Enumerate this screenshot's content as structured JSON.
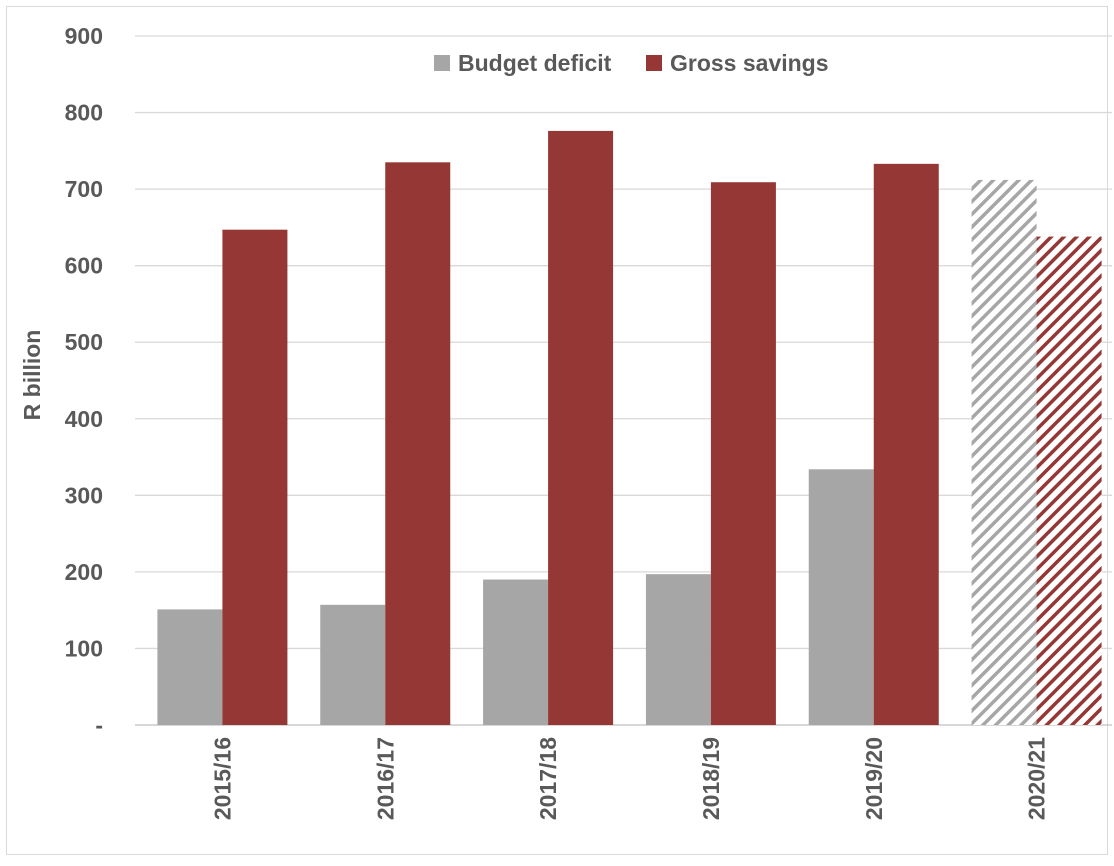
{
  "chart_data": {
    "type": "bar",
    "title": "",
    "xlabel": "",
    "ylabel": "R billion",
    "ylim": [
      0,
      900
    ],
    "yticks": [
      {
        "value": 0,
        "label": "-"
      },
      {
        "value": 100,
        "label": "100"
      },
      {
        "value": 200,
        "label": "200"
      },
      {
        "value": 300,
        "label": "300"
      },
      {
        "value": 400,
        "label": "400"
      },
      {
        "value": 500,
        "label": "500"
      },
      {
        "value": 600,
        "label": "600"
      },
      {
        "value": 700,
        "label": "700"
      },
      {
        "value": 800,
        "label": "800"
      },
      {
        "value": 900,
        "label": "900"
      }
    ],
    "categories": [
      "2015/16",
      "2016/17",
      "2017/18",
      "2018/19",
      "2019/20",
      "2020/21"
    ],
    "hatched_categories": [
      "2020/21"
    ],
    "series": [
      {
        "name": "Budget deficit",
        "color": "#a6a6a6",
        "values": [
          151,
          157,
          190,
          197,
          334,
          712
        ]
      },
      {
        "name": "Gross savings",
        "color": "#953735",
        "values": [
          647,
          735,
          776,
          709,
          733,
          638
        ]
      }
    ],
    "grid": "horizontal",
    "legend_position": "top"
  }
}
